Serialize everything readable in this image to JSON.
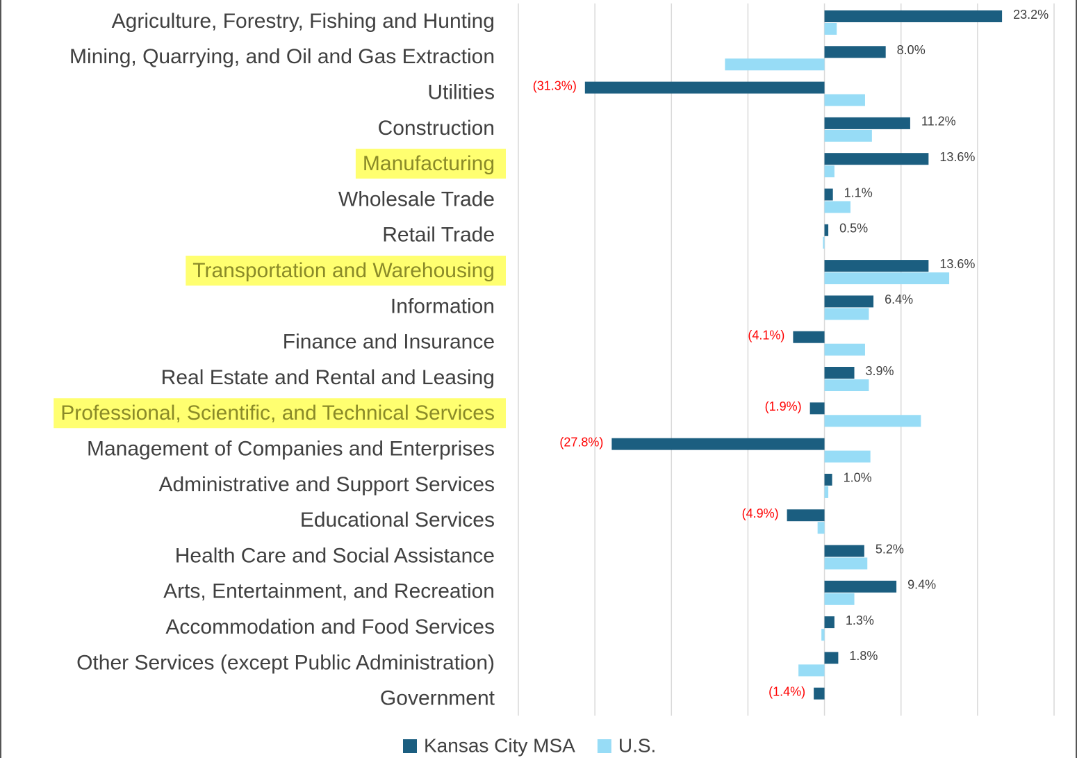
{
  "chart_data": {
    "type": "bar",
    "orientation": "horizontal",
    "categories": [
      "Agriculture, Forestry, Fishing and Hunting",
      "Mining, Quarrying, and Oil and Gas Extraction",
      "Utilities",
      "Construction",
      "Manufacturing",
      "Wholesale Trade",
      "Retail Trade",
      "Transportation and Warehousing",
      "Information",
      "Finance and Insurance",
      "Real Estate and Rental and Leasing",
      "Professional, Scientific, and Technical Services",
      "Management of Companies and Enterprises",
      "Administrative and Support  Services",
      "Educational Services",
      "Health Care and Social Assistance",
      "Arts, Entertainment, and Recreation",
      "Accommodation and Food Services",
      "Other Services (except Public Administration)",
      "Government"
    ],
    "series": [
      {
        "name": "Kansas City MSA",
        "color": "#1b5e80",
        "values": [
          23.2,
          8.0,
          -31.3,
          11.2,
          13.6,
          1.1,
          0.5,
          13.6,
          6.4,
          -4.1,
          3.9,
          -1.9,
          -27.8,
          1.0,
          -4.9,
          5.2,
          9.4,
          1.3,
          1.8,
          -1.4
        ],
        "value_labels": [
          "23.2%",
          "8.0%",
          "(31.3%)",
          "11.2%",
          "13.6%",
          "1.1%",
          "0.5%",
          "13.6%",
          "6.4%",
          "(4.1%)",
          "3.9%",
          "(1.9%)",
          "(27.8%)",
          "1.0%",
          "(4.9%)",
          "5.2%",
          "9.4%",
          "1.3%",
          "1.8%",
          "(1.4%)"
        ]
      },
      {
        "name": "U.S.",
        "color": "#97dcf6",
        "values": [
          1.6,
          -13.0,
          5.3,
          6.2,
          1.3,
          3.4,
          -0.2,
          16.3,
          5.8,
          5.3,
          5.8,
          12.6,
          6.0,
          0.5,
          -0.9,
          5.6,
          3.9,
          -0.4,
          -3.4,
          0
        ]
      }
    ],
    "xlim": [
      -40,
      30
    ],
    "xticks": [
      -40,
      -30,
      -20,
      -10,
      0,
      10,
      20,
      30
    ],
    "grid": true,
    "negative_label_color": "#ff0000",
    "highlight_indices": [
      4,
      7,
      11
    ],
    "legend": "bottom"
  }
}
